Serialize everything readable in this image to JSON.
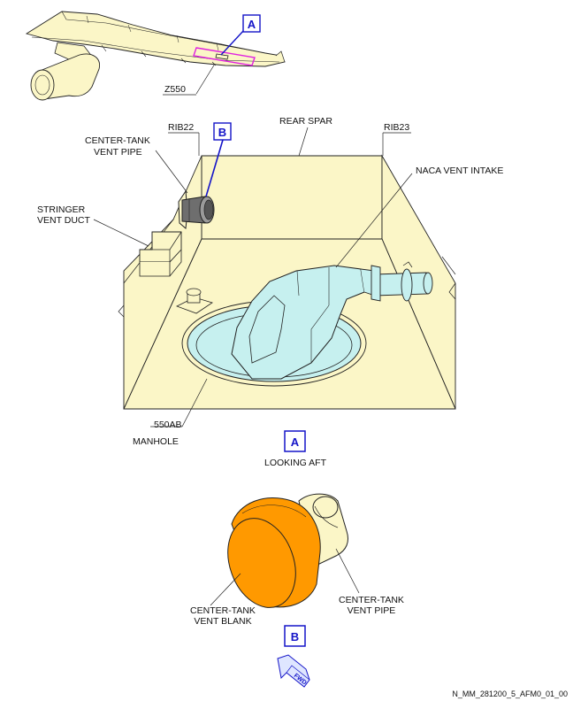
{
  "colors": {
    "structure_fill": "#fbf6c7",
    "vent_fill": "#c6f0ef",
    "blank_fill": "#ff9900",
    "callout_blue": "#1414c8",
    "zone_magenta": "#e020e0"
  },
  "overview": {
    "callout_a": "A",
    "zone_label": "Z550"
  },
  "view_a": {
    "rib_left": "RIB22",
    "rib_right": "RIB23",
    "rear_spar": "REAR SPAR",
    "center_tank_vent_pipe": [
      "CENTER-TANK",
      "VENT PIPE"
    ],
    "callout_b": "B",
    "stringer_vent_duct": [
      "STRINGER",
      "VENT DUCT"
    ],
    "naca_vent_intake": "NACA VENT INTAKE",
    "manhole_code": "550AB",
    "manhole": "MANHOLE",
    "view_letter": "A",
    "view_caption": "LOOKING AFT"
  },
  "detail_b": {
    "vent_blank": [
      "CENTER-TANK",
      "VENT BLANK"
    ],
    "vent_pipe": [
      "CENTER-TANK",
      "VENT PIPE"
    ],
    "view_letter": "B",
    "fwd_arrow": "FWD"
  },
  "figure_code": "N_MM_281200_5_AFM0_01_00"
}
